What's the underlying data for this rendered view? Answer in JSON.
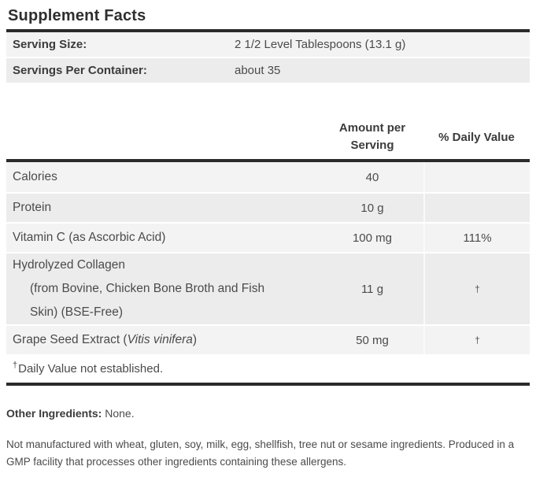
{
  "title": "Supplement Facts",
  "serving_info": {
    "rows": [
      {
        "label": "Serving Size:",
        "value": "2 1/2 Level Tablespoons (13.1 g)"
      },
      {
        "label": "Servings Per Container:",
        "value": "about 35"
      }
    ]
  },
  "table": {
    "header": {
      "amount_line1": "Amount per",
      "amount_line2": "Serving",
      "daily_value": "% Daily Value"
    },
    "rows": [
      {
        "name": "Calories",
        "amount": "40",
        "dv": ""
      },
      {
        "name": "Protein",
        "amount": "10 g",
        "dv": ""
      },
      {
        "name": "Vitamin C (as Ascorbic Acid)",
        "amount": "100 mg",
        "dv": "111%"
      },
      {
        "name": "Hydrolyzed Collagen",
        "name_detail": "(from Bovine, Chicken Bone Broth and Fish Skin) (BSE-Free)",
        "amount": "11 g",
        "dv": "†"
      },
      {
        "name_prefix": "Grape Seed Extract (",
        "name_italic": "Vitis vinifera",
        "name_suffix": ")",
        "amount": "50 mg",
        "dv": "†"
      }
    ],
    "footnote": {
      "symbol": "†",
      "text": "Daily Value not established."
    }
  },
  "other_ingredients": {
    "label": "Other Ingredients:",
    "value": "None."
  },
  "allergen_statement": "Not manufactured with wheat, gluten, soy, milk, egg, shellfish, tree nut or sesame ingredients. Produced in a GMP facility that processes other ingredients containing these allergens.",
  "colors": {
    "bar": "#2b2b2b",
    "stripe_light": "#f3f3f3",
    "stripe_dark": "#ececec",
    "title_text": "#2e2e2e",
    "body_text": "#4b4b4b"
  }
}
